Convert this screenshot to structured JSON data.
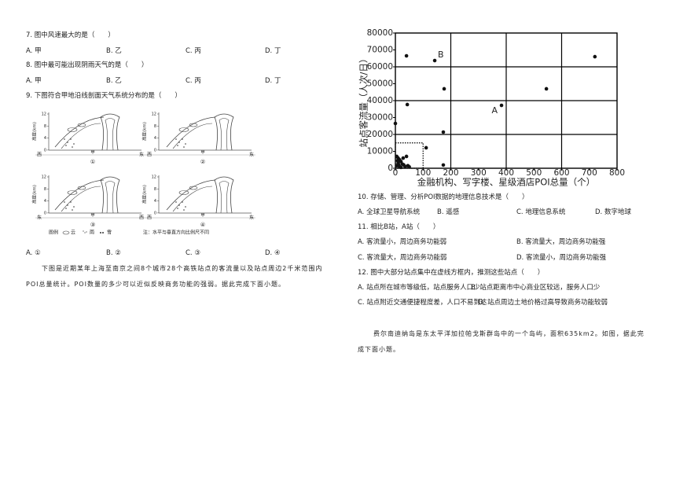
{
  "questions": [
    {
      "stem": "7. 图中风速最大的是（　　）",
      "options": [
        "A. 甲",
        "B. 乙",
        "C. 丙",
        "D. 丁"
      ]
    },
    {
      "stem": "8. 图中最可能出现阴雨天气的是（　　）",
      "options": [
        "A. 甲",
        "B. 乙",
        "C. 丙",
        "D. 丁"
      ]
    },
    {
      "stem": "9. 下图符合甲地沿线剖面天气系统分布的是（　　）",
      "options": [
        "A. ①",
        "B. ②",
        "C. ③",
        "D. ④"
      ]
    },
    {
      "stem": "10. 存储、管理、分析POI数据的地理信息技术是（　　）",
      "options": [
        "A. 全球卫星导航系统",
        "B. 遥感",
        "C. 地理信息系统",
        "D. 数字地球"
      ]
    },
    {
      "stem": "11. 相比B站，A站（　　）",
      "options": [
        "A. 客流量小，周边商务功能弱",
        "B. 客流量大，周边商务功能强",
        "C. 客流量大，周边商务功能弱",
        "D. 客流量小，周边商务功能强"
      ]
    },
    {
      "stem": "12. 图中大部分站点集中在虚线方框内，推测这些站点（　　）",
      "options": [
        "A. 站点所在城市等级低，站点服务人口少",
        "B. 站点距离市中心商业区较远，服务人口少",
        "C. 站点附近交通便捷程度差，人口不易到达",
        "D. 站点周边土地价格过高导致商务功能较弱"
      ]
    }
  ],
  "passages": [
    "下图是近期某年上海至南京之间8个城市28个高铁站点的客流量以及站点周边2千米范围内POI总量统计。POI数量的多少可以近似反映商务功能的强弱。据此完成下面小题。",
    "费尔南迪纳岛是东太平洋加拉帕戈斯群岛中的一个岛屿，面积635km2。如图，据此完成下面小题。"
  ],
  "figure": {
    "y_label": "高度(km)",
    "yticks": [
      12,
      8,
      4,
      0
    ],
    "panels": [
      {
        "number": "①",
        "left": "西",
        "right": "东",
        "marker": "甲"
      },
      {
        "number": "②",
        "left": "西",
        "right": "东",
        "marker": "甲"
      },
      {
        "number": "③",
        "left": "东",
        "right": "西",
        "marker": "甲"
      },
      {
        "number": "④",
        "left": "西",
        "right": "东",
        "marker": "甲"
      }
    ],
    "legend": {
      "title": "图例",
      "items": [
        "云",
        "雨",
        "雪"
      ]
    },
    "note": "注：水平与垂直方向比例尺不同"
  },
  "chart_data": {
    "type": "scatter",
    "xlabel": "金融机构、写字楼、星级酒店POI总量（个）",
    "ylabel": "站点客流量（人次/日）",
    "color": "#111111",
    "grid": true,
    "xlim": [
      0,
      800
    ],
    "ylim": [
      0,
      80000
    ],
    "xticks": [
      0,
      100,
      200,
      300,
      400,
      500,
      600,
      700,
      800
    ],
    "yticks": [
      0,
      10000,
      20000,
      30000,
      40000,
      50000,
      60000,
      70000,
      80000
    ],
    "x": [
      40,
      142,
      176,
      43,
      383,
      545,
      720,
      0,
      173,
      111,
      173,
      5,
      10,
      15,
      20,
      10,
      25,
      30,
      5,
      40,
      45,
      15,
      35,
      20,
      8,
      50,
      28,
      12
    ],
    "values": [
      66500,
      63700,
      47000,
      37700,
      37200,
      47000,
      66000,
      26500,
      21400,
      12100,
      1900,
      7000,
      6000,
      5000,
      4000,
      3000,
      2500,
      2000,
      1500,
      7000,
      1500,
      1000,
      1000,
      500,
      4500,
      800,
      6000,
      2000
    ],
    "annotations": [
      {
        "text": "B",
        "x": 142,
        "y": 63700
      },
      {
        "text": "A",
        "x": 383,
        "y": 37200
      }
    ],
    "dashed_box": {
      "x": [
        0,
        100
      ],
      "y": [
        0,
        15000
      ]
    }
  }
}
